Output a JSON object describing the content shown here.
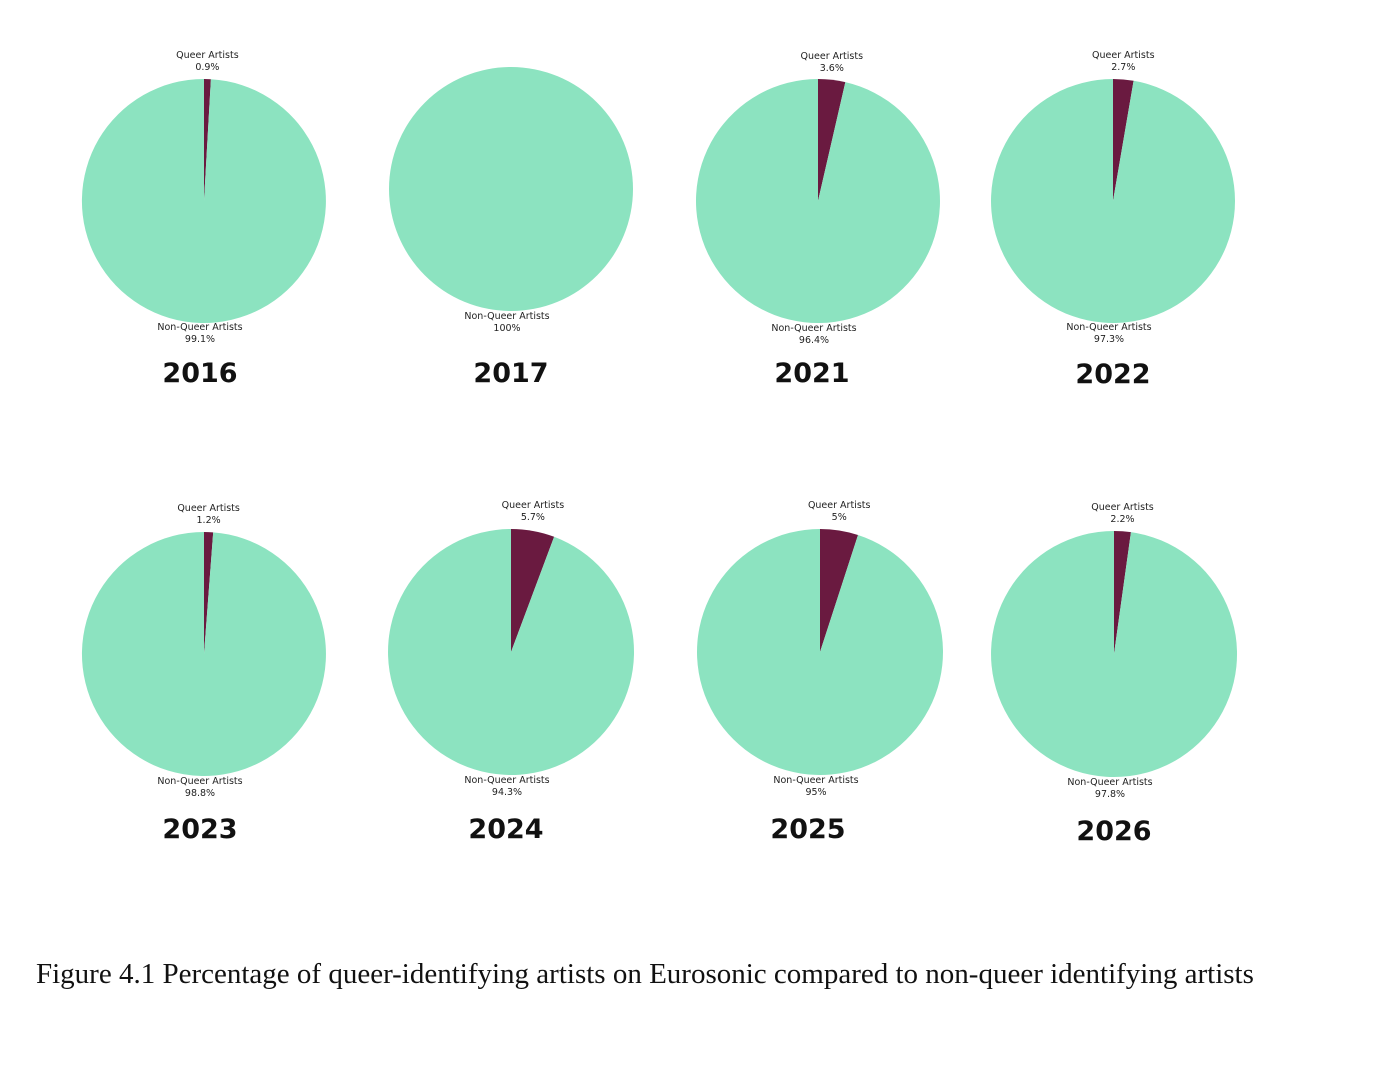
{
  "chart_data": [
    {
      "type": "pie",
      "title": "2016",
      "slices": [
        {
          "label": "Queer Artists",
          "value": 0.9,
          "value_label": "0.9%"
        },
        {
          "label": "Non-Queer Artists",
          "value": 99.1,
          "value_label": "99.1%"
        }
      ]
    },
    {
      "type": "pie",
      "title": "2017",
      "slices": [
        {
          "label": "Non-Queer Artists",
          "value": 100,
          "value_label": "100%"
        }
      ]
    },
    {
      "type": "pie",
      "title": "2021",
      "slices": [
        {
          "label": "Queer Artists",
          "value": 3.6,
          "value_label": "3.6%"
        },
        {
          "label": "Non-Queer Artists",
          "value": 96.4,
          "value_label": "96.4%"
        }
      ]
    },
    {
      "type": "pie",
      "title": "2022",
      "slices": [
        {
          "label": "Queer Artists",
          "value": 2.7,
          "value_label": "2.7%"
        },
        {
          "label": "Non-Queer Artists",
          "value": 97.3,
          "value_label": "97.3%"
        }
      ]
    },
    {
      "type": "pie",
      "title": "2023",
      "slices": [
        {
          "label": "Queer Artists",
          "value": 1.2,
          "value_label": "1.2%"
        },
        {
          "label": "Non-Queer Artists",
          "value": 98.8,
          "value_label": "98.8%"
        }
      ]
    },
    {
      "type": "pie",
      "title": "2024",
      "slices": [
        {
          "label": "Queer Artists",
          "value": 5.7,
          "value_label": "5.7%"
        },
        {
          "label": "Non-Queer Artists",
          "value": 94.3,
          "value_label": "94.3%"
        }
      ]
    },
    {
      "type": "pie",
      "title": "2025",
      "slices": [
        {
          "label": "Queer Artists",
          "value": 5,
          "value_label": "5%"
        },
        {
          "label": "Non-Queer Artists",
          "value": 95,
          "value_label": "95%"
        }
      ]
    },
    {
      "type": "pie",
      "title": "2026",
      "slices": [
        {
          "label": "Queer Artists",
          "value": 2.2,
          "value_label": "2.2%"
        },
        {
          "label": "Non-Queer Artists",
          "value": 97.8,
          "value_label": "97.8%"
        }
      ]
    }
  ],
  "colors": {
    "Queer Artists": "#6a1a40",
    "Non-Queer Artists": "#8ce3c0"
  },
  "caption": "Figure 4.1 Percentage of queer-identifying artists on Eurosonic compared to non-queer identifying artists"
}
